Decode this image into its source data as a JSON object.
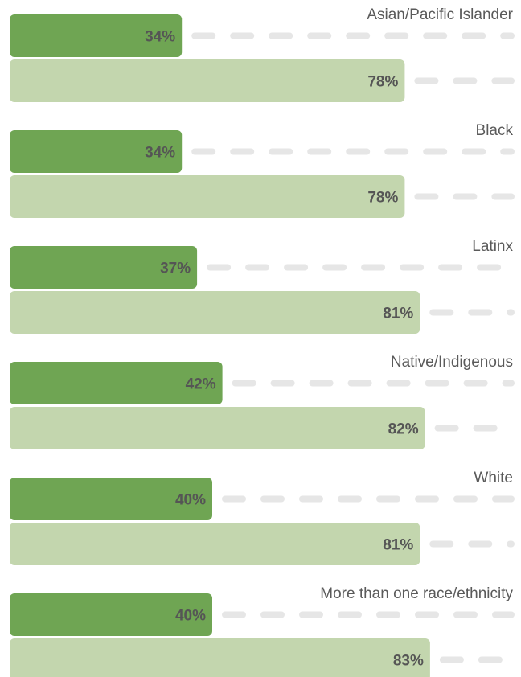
{
  "colors": {
    "series_1": "#6fa553",
    "series_2": "#c3d6ae",
    "dash": "#e6e6e6"
  },
  "chart_data": {
    "type": "bar",
    "orientation": "horizontal",
    "categories": [
      "Asian/Pacific Islander",
      "Black",
      "Latinx",
      "Native/Indigenous",
      "White",
      "More than one race/ethnicity"
    ],
    "series": [
      {
        "values": [
          34,
          34,
          37,
          42,
          40,
          40
        ]
      },
      {
        "values": [
          78,
          78,
          81,
          82,
          81,
          83
        ]
      }
    ],
    "value_suffix": "%",
    "xlim": [
      0,
      100
    ],
    "grid": false,
    "legend": "none"
  }
}
